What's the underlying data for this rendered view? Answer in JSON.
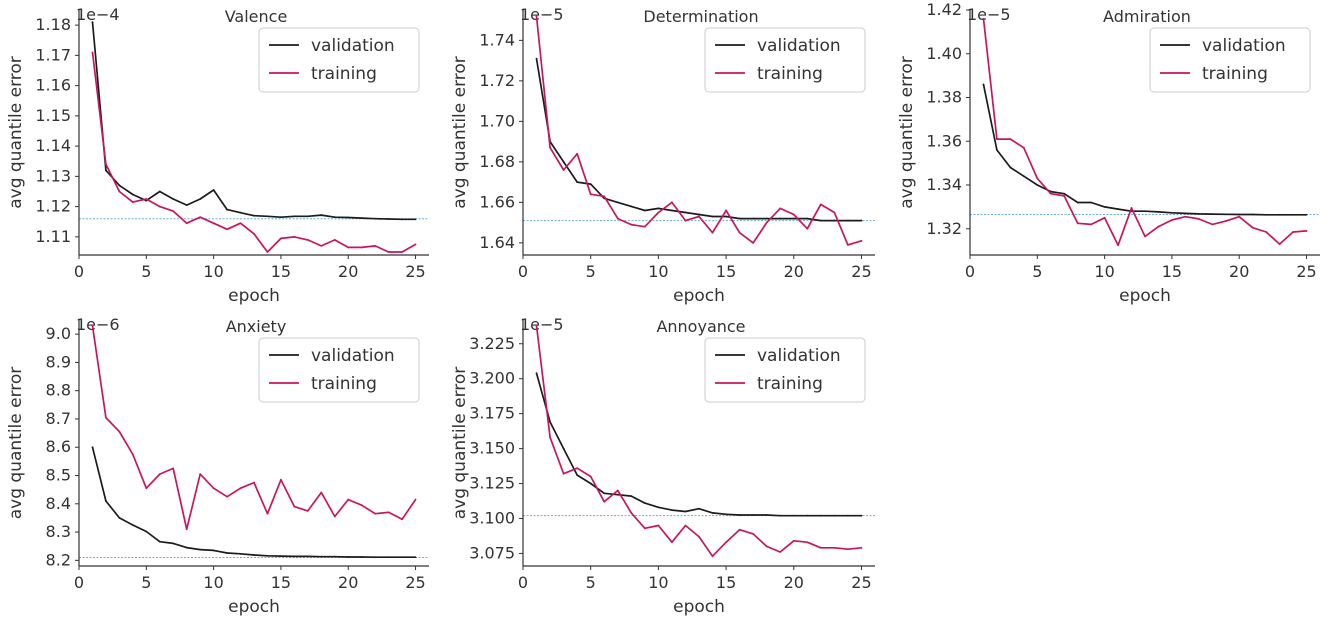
{
  "colors": {
    "validation": "#1c1c1c",
    "training": "#c8155f",
    "reference": "#6aaed6",
    "axis": "#333333"
  },
  "legend_labels": [
    "validation",
    "training"
  ],
  "chart_data": [
    {
      "type": "line",
      "title": "Valence",
      "xlabel": "epoch",
      "ylabel": "avg quantile error",
      "offset_text": "1e−4",
      "xlim": [
        0,
        26
      ],
      "ylim": [
        1.104,
        1.185
      ],
      "xticks": [
        0,
        5,
        10,
        15,
        20,
        25
      ],
      "yticks": [
        1.11,
        1.12,
        1.13,
        1.14,
        1.15,
        1.16,
        1.17,
        1.18
      ],
      "ytick_labels": [
        "1.11",
        "1.12",
        "1.13",
        "1.14",
        "1.15",
        "1.16",
        "1.17",
        "1.18"
      ],
      "legend": "top-right",
      "grid": false,
      "reference_y": 1.116,
      "x": [
        1,
        2,
        3,
        4,
        5,
        6,
        7,
        8,
        9,
        10,
        11,
        12,
        13,
        14,
        15,
        16,
        17,
        18,
        19,
        20,
        21,
        22,
        23,
        24,
        25
      ],
      "series": [
        {
          "name": "validation",
          "values": [
            1.181,
            1.132,
            1.127,
            1.124,
            1.122,
            1.125,
            1.1225,
            1.1205,
            1.1225,
            1.1255,
            1.119,
            1.118,
            1.117,
            1.1168,
            1.1165,
            1.1168,
            1.1168,
            1.1172,
            1.1165,
            1.1164,
            1.1162,
            1.116,
            1.1159,
            1.1158,
            1.1158
          ]
        },
        {
          "name": "training",
          "values": [
            1.171,
            1.134,
            1.125,
            1.1215,
            1.1225,
            1.12,
            1.1185,
            1.1145,
            1.1165,
            1.1145,
            1.1125,
            1.1145,
            1.111,
            1.105,
            1.1095,
            1.11,
            1.109,
            1.107,
            1.109,
            1.1065,
            1.1065,
            1.107,
            1.105,
            1.105,
            1.1075
          ]
        }
      ]
    },
    {
      "type": "line",
      "title": "Determination",
      "xlabel": "epoch",
      "ylabel": "avg quantile error",
      "offset_text": "1e−5",
      "xlim": [
        0,
        26
      ],
      "ylim": [
        1.634,
        1.755
      ],
      "xticks": [
        0,
        5,
        10,
        15,
        20,
        25
      ],
      "yticks": [
        1.64,
        1.66,
        1.68,
        1.7,
        1.72,
        1.74
      ],
      "ytick_labels": [
        "1.64",
        "1.66",
        "1.68",
        "1.70",
        "1.72",
        "1.74"
      ],
      "legend": "top-right",
      "grid": false,
      "reference_y": 1.651,
      "x": [
        1,
        2,
        3,
        4,
        5,
        6,
        7,
        8,
        9,
        10,
        11,
        12,
        13,
        14,
        15,
        16,
        17,
        18,
        19,
        20,
        21,
        22,
        23,
        24,
        25
      ],
      "series": [
        {
          "name": "validation",
          "values": [
            1.731,
            1.69,
            1.68,
            1.67,
            1.669,
            1.662,
            1.66,
            1.658,
            1.656,
            1.657,
            1.656,
            1.655,
            1.654,
            1.653,
            1.653,
            1.652,
            1.652,
            1.652,
            1.652,
            1.652,
            1.652,
            1.651,
            1.651,
            1.651,
            1.651
          ]
        },
        {
          "name": "training",
          "values": [
            1.752,
            1.687,
            1.676,
            1.684,
            1.664,
            1.663,
            1.652,
            1.649,
            1.648,
            1.655,
            1.66,
            1.651,
            1.653,
            1.645,
            1.656,
            1.645,
            1.64,
            1.65,
            1.657,
            1.654,
            1.647,
            1.659,
            1.655,
            1.639,
            1.641
          ]
        }
      ]
    },
    {
      "type": "line",
      "title": "Admiration",
      "xlabel": "epoch",
      "ylabel": "avg quantile error",
      "offset_text": "1e−5",
      "xlim": [
        0,
        26
      ],
      "ylim": [
        1.308,
        1.42
      ],
      "xticks": [
        0,
        5,
        10,
        15,
        20,
        25
      ],
      "yticks": [
        1.32,
        1.34,
        1.36,
        1.38,
        1.4,
        1.42
      ],
      "ytick_labels": [
        "1.32",
        "1.34",
        "1.36",
        "1.38",
        "1.40",
        "1.42"
      ],
      "legend": "top-right",
      "grid": false,
      "reference_y": 1.3265,
      "x": [
        1,
        2,
        3,
        4,
        5,
        6,
        7,
        8,
        9,
        10,
        11,
        12,
        13,
        14,
        15,
        16,
        17,
        18,
        19,
        20,
        21,
        22,
        23,
        24,
        25
      ],
      "series": [
        {
          "name": "validation",
          "values": [
            1.386,
            1.356,
            1.348,
            1.344,
            1.34,
            1.337,
            1.336,
            1.332,
            1.332,
            1.33,
            1.329,
            1.328,
            1.328,
            1.3277,
            1.3273,
            1.327,
            1.3268,
            1.3267,
            1.3266,
            1.3265,
            1.3265,
            1.3264,
            1.3264,
            1.3264,
            1.3264
          ]
        },
        {
          "name": "training",
          "values": [
            1.416,
            1.361,
            1.361,
            1.357,
            1.343,
            1.336,
            1.335,
            1.3225,
            1.322,
            1.325,
            1.3125,
            1.3295,
            1.3165,
            1.321,
            1.324,
            1.3255,
            1.3245,
            1.322,
            1.3235,
            1.3255,
            1.3205,
            1.3185,
            1.313,
            1.3185,
            1.319
          ]
        }
      ]
    },
    {
      "type": "line",
      "title": "Anxiety",
      "xlabel": "epoch",
      "ylabel": "avg quantile error",
      "offset_text": "1e−6",
      "xlim": [
        0,
        26
      ],
      "ylim": [
        8.18,
        9.05
      ],
      "xticks": [
        0,
        5,
        10,
        15,
        20,
        25
      ],
      "yticks": [
        8.2,
        8.3,
        8.4,
        8.5,
        8.6,
        8.7,
        8.8,
        8.9,
        9.0
      ],
      "ytick_labels": [
        "8.2",
        "8.3",
        "8.4",
        "8.5",
        "8.6",
        "8.7",
        "8.8",
        "8.9",
        "9.0"
      ],
      "legend": "top-right",
      "grid": false,
      "reference_y": 8.21,
      "x": [
        1,
        2,
        3,
        4,
        5,
        6,
        7,
        8,
        9,
        10,
        11,
        12,
        13,
        14,
        15,
        16,
        17,
        18,
        19,
        20,
        21,
        22,
        23,
        24,
        25
      ],
      "series": [
        {
          "name": "validation",
          "values": [
            8.6,
            8.41,
            8.35,
            8.325,
            8.302,
            8.266,
            8.26,
            8.245,
            8.238,
            8.235,
            8.226,
            8.223,
            8.219,
            8.216,
            8.215,
            8.214,
            8.214,
            8.213,
            8.213,
            8.212,
            8.212,
            8.211,
            8.211,
            8.211,
            8.211
          ]
        },
        {
          "name": "training",
          "values": [
            9.03,
            8.705,
            8.655,
            8.575,
            8.455,
            8.505,
            8.525,
            8.31,
            8.505,
            8.455,
            8.425,
            8.455,
            8.475,
            8.365,
            8.485,
            8.39,
            8.375,
            8.44,
            8.355,
            8.415,
            8.395,
            8.365,
            8.37,
            8.345,
            8.415
          ]
        }
      ]
    },
    {
      "type": "line",
      "title": "Annoyance",
      "xlabel": "epoch",
      "ylabel": "avg quantile error",
      "offset_text": "1e−5",
      "xlim": [
        0,
        26
      ],
      "ylim": [
        3.066,
        3.242
      ],
      "xticks": [
        0,
        5,
        10,
        15,
        20,
        25
      ],
      "yticks": [
        3.075,
        3.1,
        3.125,
        3.15,
        3.175,
        3.2,
        3.225
      ],
      "ytick_labels": [
        "3.075",
        "3.100",
        "3.125",
        "3.150",
        "3.175",
        "3.200",
        "3.225"
      ],
      "legend": "top-right",
      "grid": false,
      "reference_y": 3.102,
      "x": [
        1,
        2,
        3,
        4,
        5,
        6,
        7,
        8,
        9,
        10,
        11,
        12,
        13,
        14,
        15,
        16,
        17,
        18,
        19,
        20,
        21,
        22,
        23,
        24,
        25
      ],
      "series": [
        {
          "name": "validation",
          "values": [
            3.204,
            3.169,
            3.15,
            3.131,
            3.125,
            3.118,
            3.117,
            3.116,
            3.111,
            3.108,
            3.106,
            3.105,
            3.107,
            3.104,
            3.103,
            3.1025,
            3.1025,
            3.1025,
            3.102,
            3.102,
            3.102,
            3.102,
            3.102,
            3.102,
            3.102
          ]
        },
        {
          "name": "training",
          "values": [
            3.238,
            3.158,
            3.132,
            3.136,
            3.13,
            3.112,
            3.12,
            3.104,
            3.093,
            3.095,
            3.083,
            3.095,
            3.087,
            3.073,
            3.083,
            3.092,
            3.089,
            3.08,
            3.076,
            3.084,
            3.083,
            3.079,
            3.079,
            3.078,
            3.079
          ]
        }
      ]
    }
  ]
}
